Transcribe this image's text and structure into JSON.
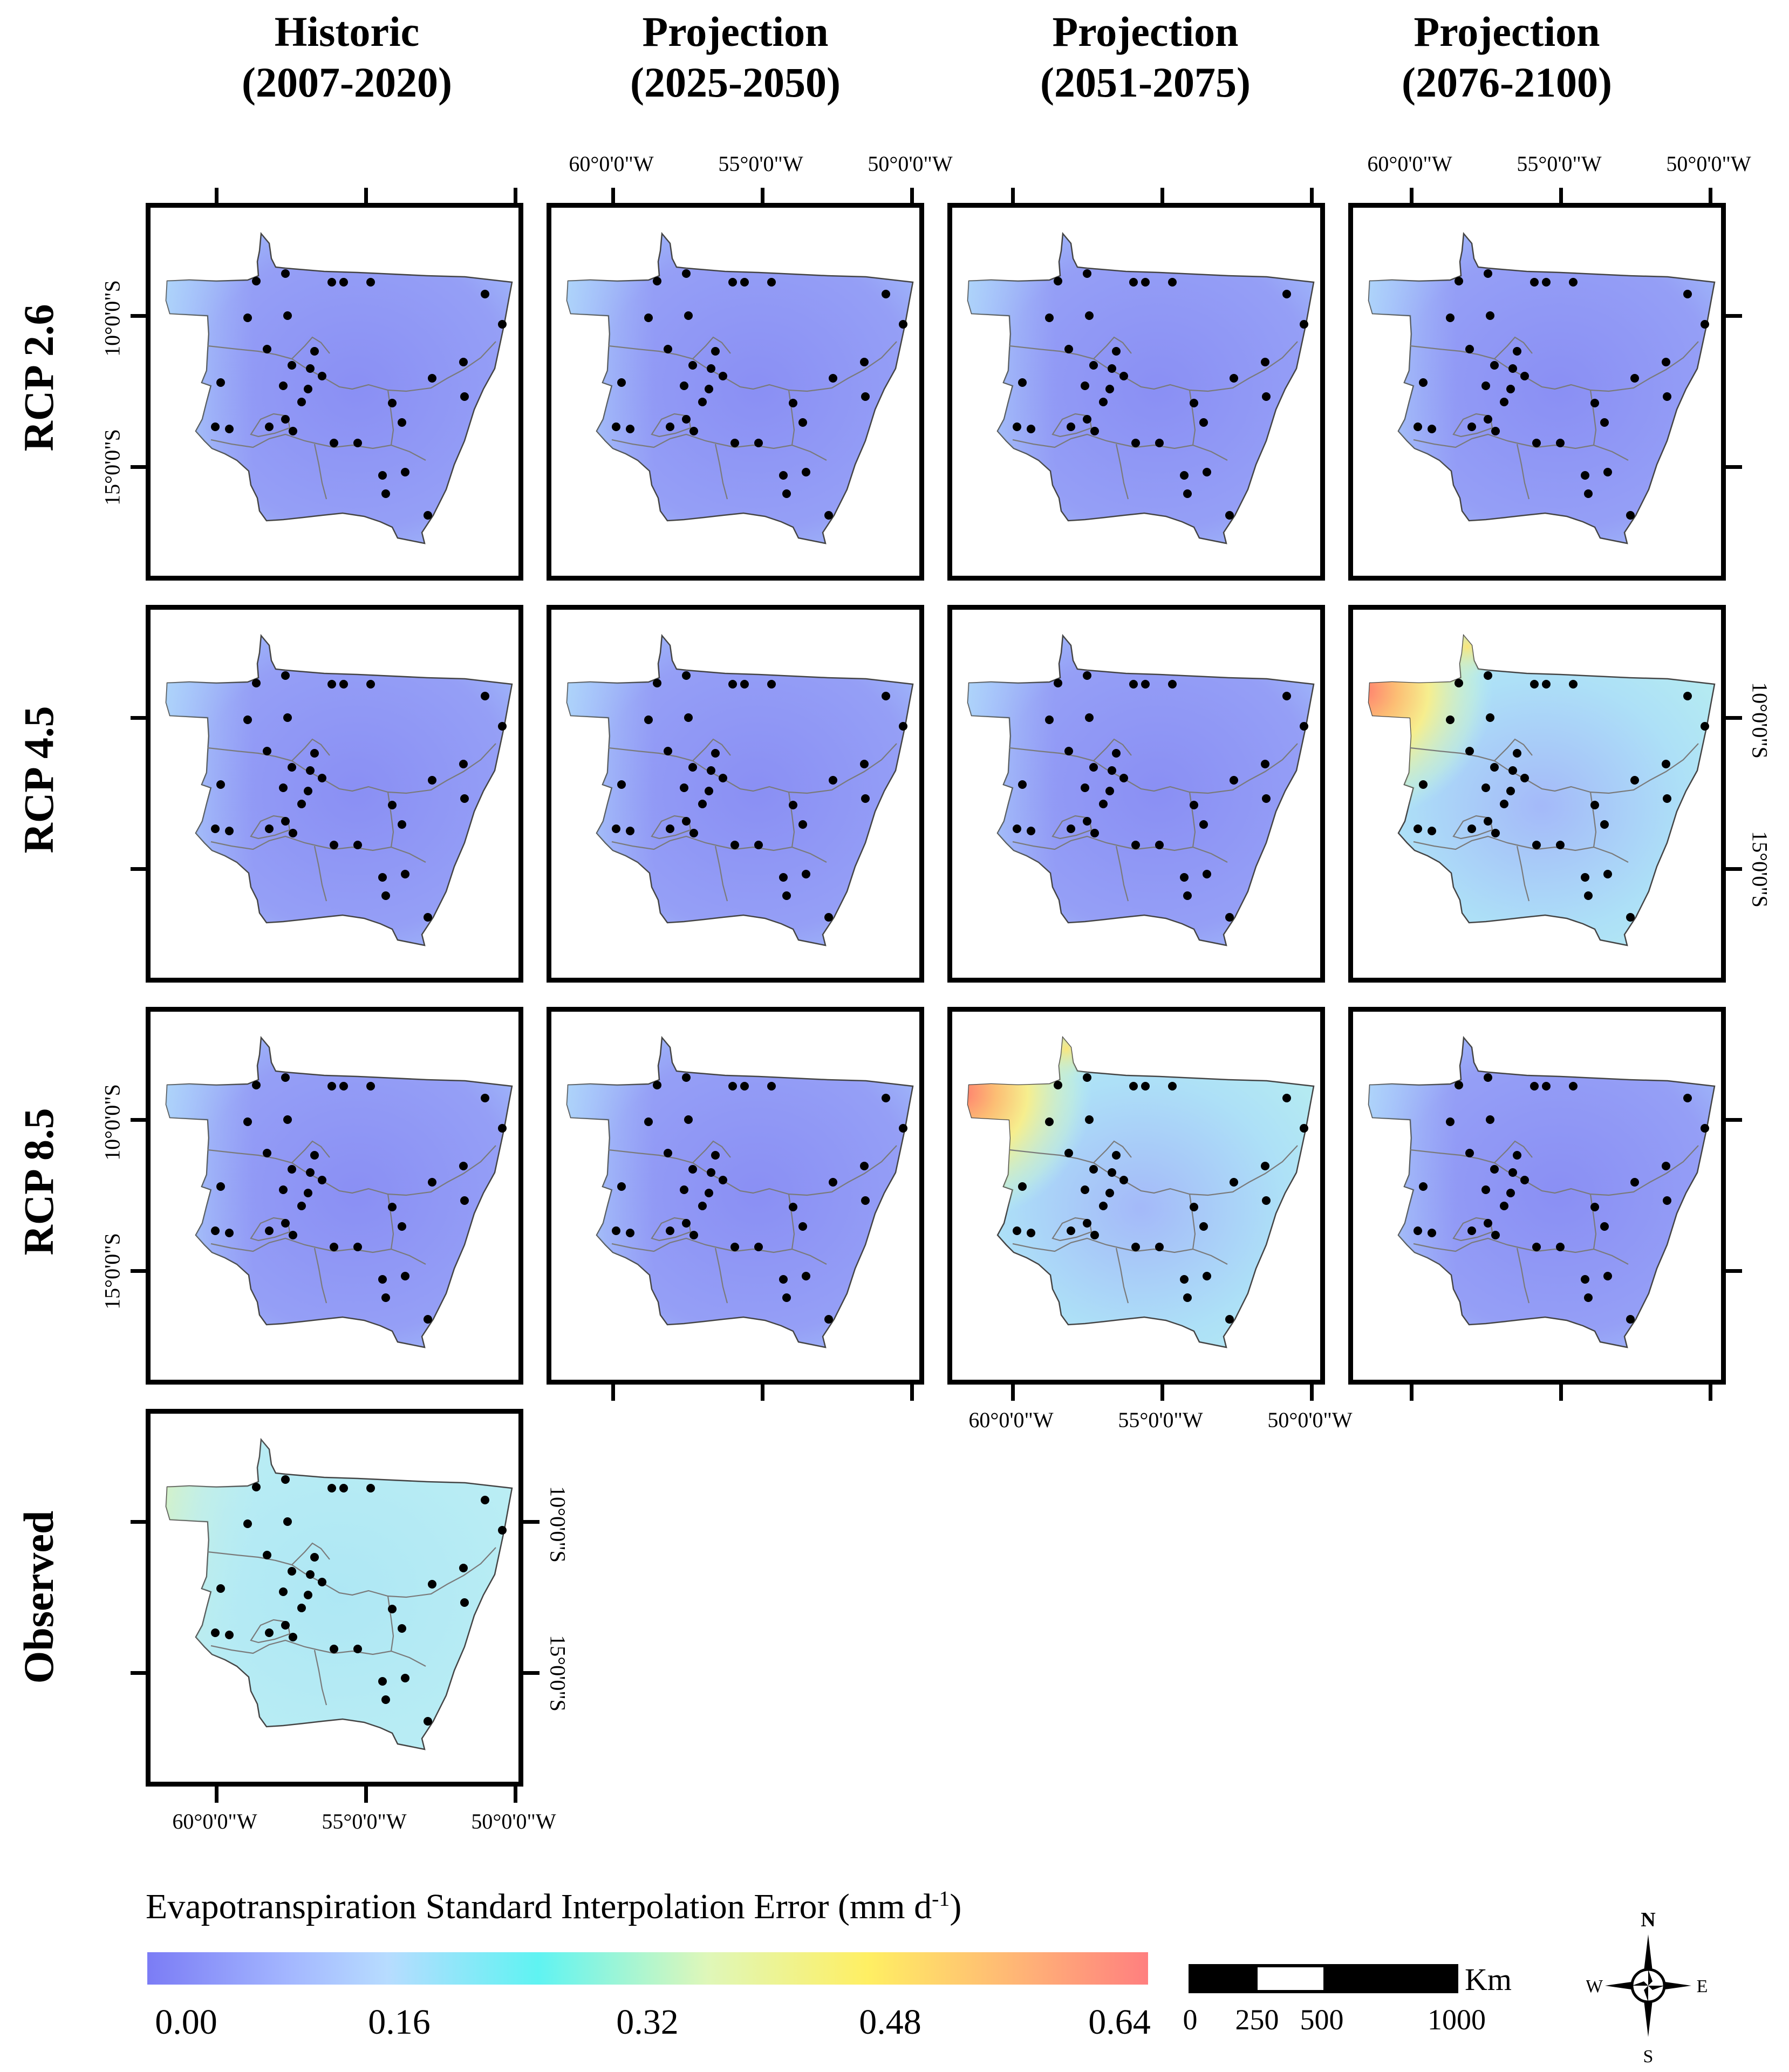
{
  "columns": [
    {
      "title": "Historic",
      "period": "(2007-2020)"
    },
    {
      "title": "Projection",
      "period": "(2025-2050)"
    },
    {
      "title": "Projection",
      "period": "(2051-2075)"
    },
    {
      "title": "Projection",
      "period": "(2076-2100)"
    }
  ],
  "rows": [
    "RCP 2.6",
    "RCP 4.5",
    "RCP 8.5",
    "Observed"
  ],
  "coordinates": {
    "lon": [
      "60°0'0\"W",
      "55°0'0\"W",
      "50°0'0\"W"
    ],
    "lat": [
      "10°0'0\"S",
      "15°0'0\"S"
    ]
  },
  "legend": {
    "title": "Evapotranspiration Standard Interpolation Error (mm d",
    "unit_superscript": "-1",
    "title_close": ")",
    "ticks": [
      "0.00",
      "0.16",
      "0.32",
      "0.48",
      "0.64"
    ]
  },
  "scale_bar": {
    "unit": "Km",
    "labels": [
      "0",
      "250",
      "500",
      "1000"
    ]
  },
  "north_arrow": {
    "n": "N",
    "s": "S",
    "e": "E",
    "w": "W"
  },
  "panel_tones": {
    "rcp26-historic": "low",
    "rcp26-2025-2050": "low",
    "rcp26-2051-2075": "low",
    "rcp26-2076-2100": "low",
    "rcp45-historic": "low",
    "rcp45-2025-2050": "low",
    "rcp45-2051-2075": "low",
    "rcp45-2076-2100": "high",
    "rcp85-historic": "low",
    "rcp85-2025-2050": "low",
    "rcp85-2051-2075": "high",
    "rcp85-2076-2100": "low",
    "observed-historic": "observed"
  },
  "colors": {
    "low": "#8c91f4",
    "low_edge": "#a9ccff",
    "observed": "#b5ecf4",
    "high_corner": "#ff8c6f",
    "high_mid": "#fbe37b",
    "high_fill": "#b4e8f7",
    "outline": "#444444",
    "station": "#000000",
    "legend_start": "#7b7cf5",
    "legend_end": "#ff7f7f"
  }
}
